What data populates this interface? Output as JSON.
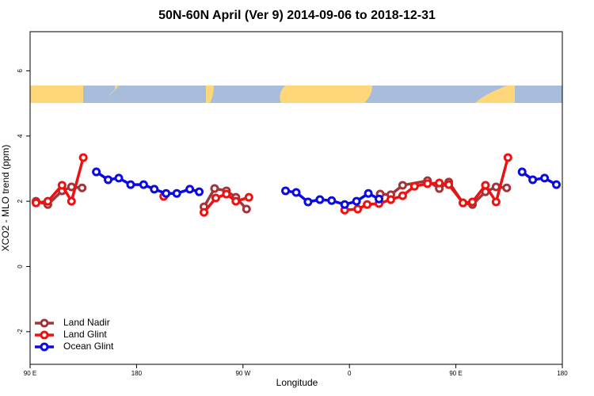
{
  "chart_data": {
    "type": "line",
    "title": "50N-60N April (Ver 9)   2014-09-06 to 2018-12-31",
    "x_label": "Longitude",
    "y_label": "XCO2 - MLO trend (ppm)",
    "xlim": [
      90,
      540
    ],
    "xticks": [
      {
        "value": 90,
        "label": "90 E"
      },
      {
        "value": 180,
        "label": "180"
      },
      {
        "value": 270,
        "label": "90 W"
      },
      {
        "value": 360,
        "label": "0"
      },
      {
        "value": 450,
        "label": "90 E"
      },
      {
        "value": 540,
        "label": "180"
      }
    ],
    "ylim": [
      -3.0,
      7.2
    ],
    "yticks": [
      -2,
      0,
      2,
      4,
      6
    ],
    "legend": "bottom-left",
    "series": [
      {
        "name": "Land Nadir",
        "color": "#a0363a",
        "x": [
          95,
          105,
          117,
          125,
          134,
          null,
          237,
          246,
          256,
          264,
          273,
          null,
          386,
          395,
          405,
          426,
          436,
          444,
          456,
          464,
          475,
          484,
          493
        ],
        "values": [
          2.0,
          1.9,
          2.32,
          2.44,
          2.41,
          null,
          1.83,
          2.39,
          2.32,
          2.12,
          1.76,
          null,
          2.22,
          2.2,
          2.49,
          2.63,
          2.39,
          2.59,
          1.95,
          1.9,
          2.29,
          2.44,
          2.41
        ]
      },
      {
        "name": "Land Glint",
        "color": "#ee1111",
        "x": [
          95,
          105,
          117,
          125,
          135,
          null,
          203,
          null,
          237,
          247,
          256,
          264,
          275,
          null,
          356,
          367,
          375,
          385,
          395,
          405,
          415,
          426,
          436,
          444,
          456,
          464,
          475,
          484,
          494
        ],
        "values": [
          1.95,
          2.0,
          2.49,
          2.0,
          3.34,
          null,
          2.15,
          null,
          1.66,
          2.1,
          2.22,
          2.0,
          2.12,
          null,
          1.73,
          1.76,
          1.9,
          1.93,
          2.05,
          2.17,
          2.46,
          2.54,
          2.56,
          2.51,
          1.95,
          1.98,
          2.49,
          1.98,
          3.34
        ]
      },
      {
        "name": "Ocean Glint",
        "color": "#0a0ae0",
        "x": [
          146,
          156,
          165,
          175,
          186,
          195,
          205,
          214,
          225,
          233,
          null,
          306,
          315,
          325,
          335,
          345,
          356,
          366,
          376,
          385,
          null,
          506,
          515,
          525,
          535
        ],
        "values": [
          2.9,
          2.66,
          2.71,
          2.51,
          2.51,
          2.37,
          2.24,
          2.24,
          2.37,
          2.29,
          null,
          2.32,
          2.27,
          1.98,
          2.05,
          2.02,
          1.9,
          2.0,
          2.24,
          2.07,
          null,
          2.9,
          2.66,
          2.71,
          2.51
        ]
      }
    ]
  }
}
